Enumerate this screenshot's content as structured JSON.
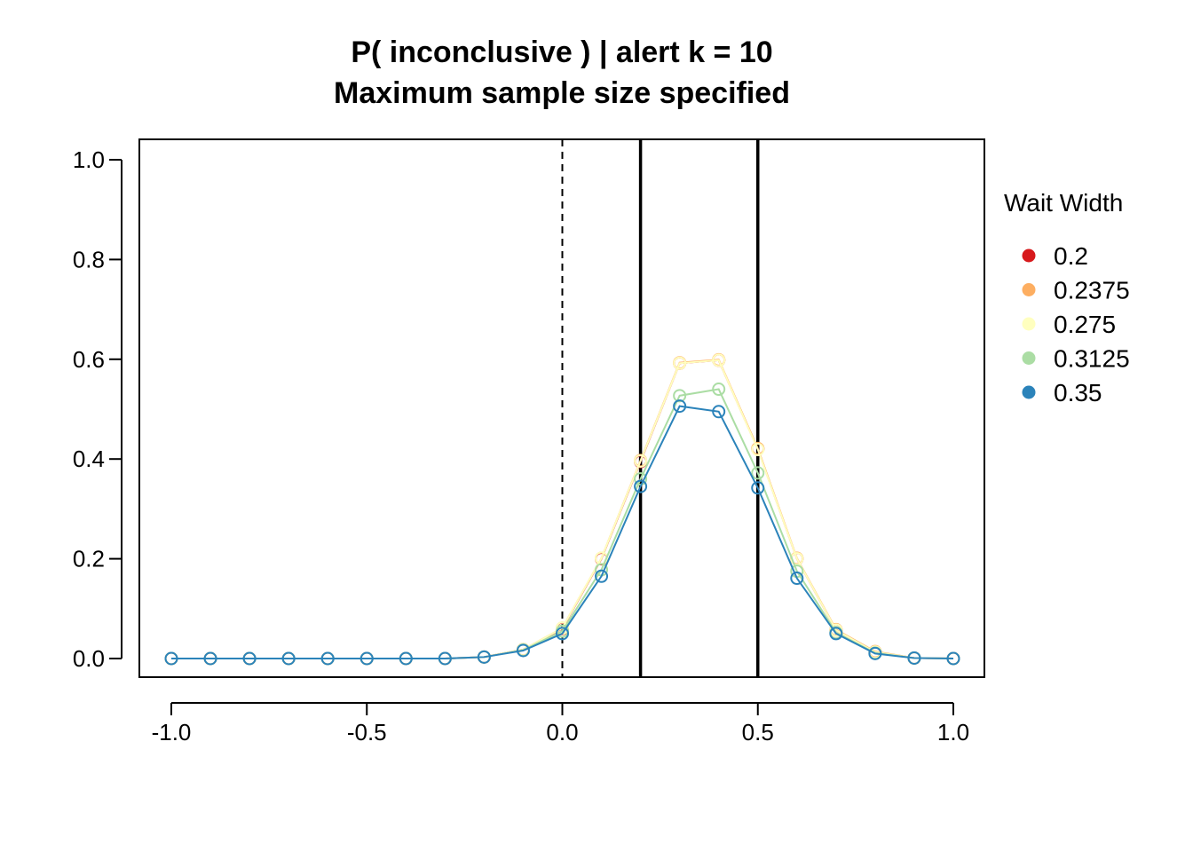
{
  "chart_data": {
    "type": "line",
    "title": "P( inconclusive ) | alert k = 10",
    "subtitle": "Maximum sample size specified",
    "xlabel": "",
    "ylabel": "",
    "xlim": [
      -1.0,
      1.0
    ],
    "ylim": [
      0.0,
      1.0
    ],
    "x_ticks": [
      "-1.0",
      "-0.5",
      "0.0",
      "0.5",
      "1.0"
    ],
    "y_ticks": [
      "0.0",
      "0.2",
      "0.4",
      "0.6",
      "0.8",
      "1.0"
    ],
    "grid": false,
    "dashed_vline": 0.0,
    "solid_vlines": [
      0.2,
      0.5
    ],
    "x": [
      -1.0,
      -0.9,
      -0.8,
      -0.7,
      -0.6,
      -0.5,
      -0.4,
      -0.3,
      -0.2,
      -0.1,
      0.0,
      0.1,
      0.2,
      0.3,
      0.4,
      0.5,
      0.6,
      0.7,
      0.8,
      0.9,
      1.0
    ],
    "legend": {
      "title": "Wait Width",
      "placement": "right"
    },
    "series": [
      {
        "name": "0.2",
        "color": "#D7191C",
        "values": [
          0,
          0,
          0,
          0,
          0,
          0,
          0,
          0,
          0.003,
          0.018,
          0.06,
          0.2,
          0.395,
          0.592,
          0.598,
          0.42,
          0.2,
          0.057,
          0.013,
          0.001,
          0
        ]
      },
      {
        "name": "0.2375",
        "color": "#FDAE61",
        "values": [
          0,
          0,
          0,
          0,
          0,
          0,
          0,
          0,
          0.003,
          0.018,
          0.061,
          0.201,
          0.397,
          0.593,
          0.599,
          0.421,
          0.201,
          0.058,
          0.014,
          0.001,
          0
        ]
      },
      {
        "name": "0.275",
        "color": "#FFFFBF",
        "values": [
          0,
          0,
          0,
          0,
          0,
          0,
          0,
          0,
          0.003,
          0.018,
          0.061,
          0.201,
          0.396,
          0.592,
          0.598,
          0.419,
          0.2,
          0.057,
          0.013,
          0.001,
          0
        ]
      },
      {
        "name": "0.3125",
        "color": "#ABDDA4",
        "values": [
          0,
          0,
          0,
          0,
          0,
          0,
          0,
          0,
          0.003,
          0.017,
          0.055,
          0.178,
          0.36,
          0.527,
          0.54,
          0.372,
          0.175,
          0.052,
          0.011,
          0.001,
          0
        ]
      },
      {
        "name": "0.35",
        "color": "#2B83BA",
        "values": [
          0,
          0,
          0,
          0,
          0,
          0,
          0,
          0,
          0.003,
          0.016,
          0.05,
          0.165,
          0.345,
          0.506,
          0.495,
          0.342,
          0.161,
          0.05,
          0.01,
          0.001,
          0
        ]
      }
    ]
  }
}
